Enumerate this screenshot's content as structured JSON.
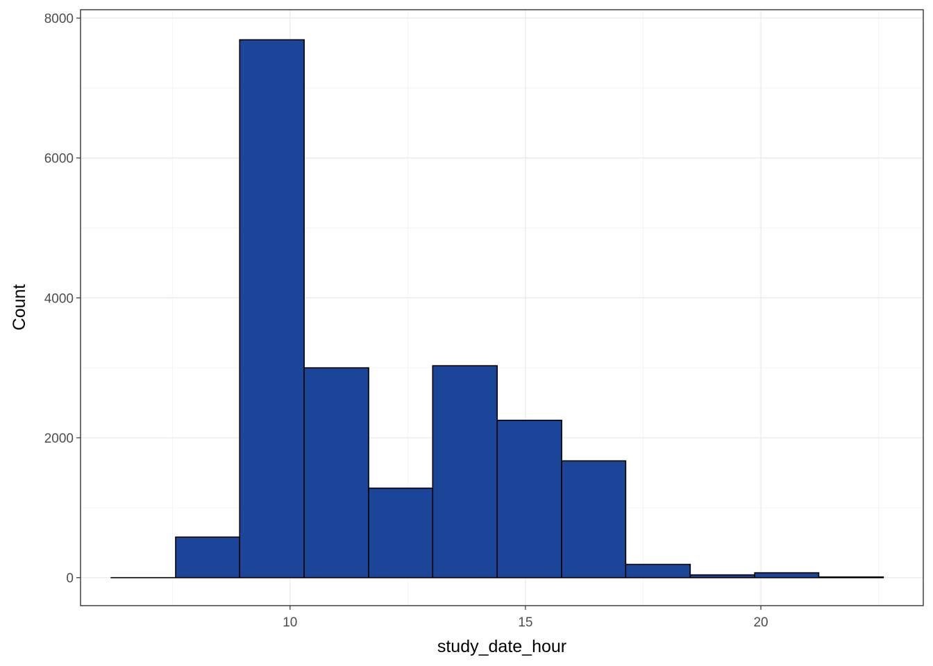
{
  "chart_data": {
    "type": "bar",
    "subtype": "histogram",
    "xlabel": "study_date_hour",
    "ylabel": "Count",
    "xlim": [
      5.55,
      23.45
    ],
    "ylim": [
      -400,
      8120
    ],
    "x_ticks": [
      10,
      15,
      20
    ],
    "y_ticks": [
      0,
      2000,
      4000,
      6000,
      8000
    ],
    "grid": true,
    "bins": [
      {
        "x_start": 6.2,
        "x_end": 7.57,
        "count": 0
      },
      {
        "x_start": 7.57,
        "x_end": 8.93,
        "count": 580
      },
      {
        "x_start": 8.93,
        "x_end": 10.3,
        "count": 7690
      },
      {
        "x_start": 10.3,
        "x_end": 11.67,
        "count": 3000
      },
      {
        "x_start": 11.67,
        "x_end": 13.03,
        "count": 1280
      },
      {
        "x_start": 13.03,
        "x_end": 14.4,
        "count": 3030
      },
      {
        "x_start": 14.4,
        "x_end": 15.77,
        "count": 2250
      },
      {
        "x_start": 15.77,
        "x_end": 17.13,
        "count": 1670
      },
      {
        "x_start": 17.13,
        "x_end": 18.5,
        "count": 190
      },
      {
        "x_start": 18.5,
        "x_end": 19.87,
        "count": 40
      },
      {
        "x_start": 19.87,
        "x_end": 21.23,
        "count": 70
      },
      {
        "x_start": 21.23,
        "x_end": 22.6,
        "count": 10
      }
    ],
    "bar_fill": "#1a4599",
    "bar_outline": "#000000"
  }
}
